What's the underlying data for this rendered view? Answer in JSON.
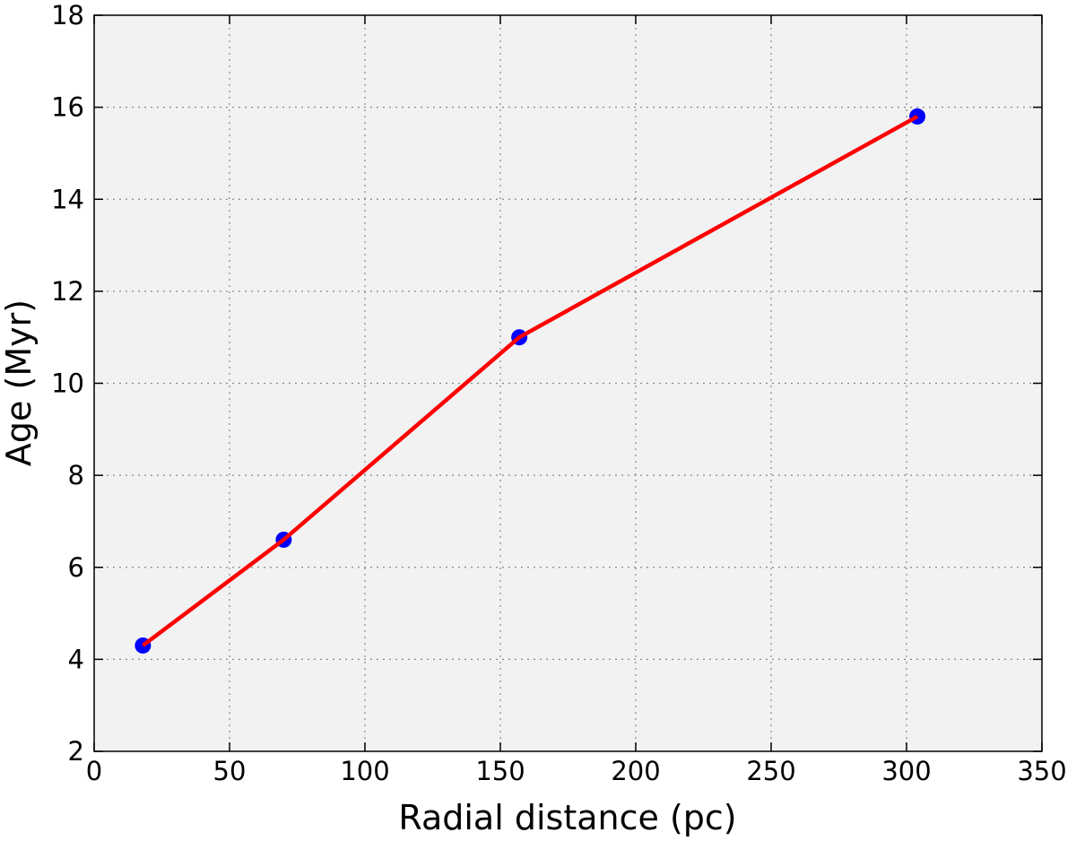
{
  "chart_data": {
    "type": "line",
    "xlabel": "Radial distance (pc)",
    "ylabel": "Age (Myr)",
    "xlim": [
      0,
      350
    ],
    "ylim": [
      2,
      18
    ],
    "xticks": [
      0,
      50,
      100,
      150,
      200,
      250,
      300,
      350
    ],
    "yticks": [
      2,
      4,
      6,
      8,
      10,
      12,
      14,
      16,
      18
    ],
    "grid": true,
    "series": [
      {
        "x": [
          18,
          70,
          157,
          304
        ],
        "y": [
          4.3,
          6.6,
          11.0,
          15.8
        ],
        "line_color": "#ff0000",
        "marker_color": "#0000ff"
      }
    ],
    "plot_background": "#f2f2f2"
  }
}
